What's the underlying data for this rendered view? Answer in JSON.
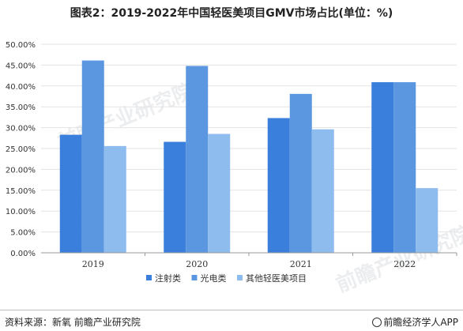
{
  "title": "图表2：2019-2022年中国轻医美项目GMV市场占比(单位：%)",
  "chart_data": {
    "type": "bar",
    "categories": [
      "2019",
      "2020",
      "2021",
      "2022"
    ],
    "series": [
      {
        "name": "注射类",
        "values": [
          28.3,
          26.6,
          32.3,
          40.9
        ],
        "color": "#3b7fdc"
      },
      {
        "name": "光电类",
        "values": [
          46.1,
          44.8,
          38.1,
          40.9
        ],
        "color": "#5a97e0"
      },
      {
        "name": "其他轻医美项目",
        "values": [
          25.6,
          28.5,
          29.6,
          15.5
        ],
        "color": "#8fbcee"
      }
    ],
    "ylim": [
      0,
      50
    ],
    "yticks": [
      "0.00%",
      "5.00%",
      "10.00%",
      "15.00%",
      "20.00%",
      "25.00%",
      "30.00%",
      "35.00%",
      "40.00%",
      "45.00%",
      "50.00%"
    ],
    "grid": true,
    "legend": "bottom"
  },
  "watermark": "前瞻产业研究院",
  "footer": {
    "source": "资料来源：新氧 前瞻产业研究院",
    "brand": "前瞻经济学人APP",
    "brand_icon": "brand-logo-icon"
  }
}
